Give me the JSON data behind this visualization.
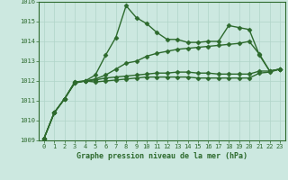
{
  "background_color": "#cce8e0",
  "grid_color": "#b0d4c8",
  "line_color": "#2d6a2d",
  "marker_color": "#2d6a2d",
  "xlabel": "Graphe pression niveau de la mer (hPa)",
  "xlim": [
    -0.5,
    23.5
  ],
  "ylim": [
    1009,
    1016
  ],
  "yticks": [
    1009,
    1010,
    1011,
    1012,
    1013,
    1014,
    1015,
    1016
  ],
  "xticks": [
    0,
    1,
    2,
    3,
    4,
    5,
    6,
    7,
    8,
    9,
    10,
    11,
    12,
    13,
    14,
    15,
    16,
    17,
    18,
    19,
    20,
    21,
    22,
    23
  ],
  "series1": [
    1009.1,
    1010.4,
    1011.1,
    1011.9,
    1012.0,
    1012.3,
    1013.3,
    1014.2,
    1015.8,
    1015.2,
    1014.9,
    1014.45,
    1014.1,
    1014.1,
    1013.95,
    1013.95,
    1014.0,
    1014.0,
    1014.8,
    1014.7,
    1014.6,
    1013.3,
    1012.5,
    1012.6
  ],
  "series2": [
    1009.1,
    1010.4,
    1011.1,
    1011.9,
    1012.0,
    1012.1,
    1012.3,
    1012.6,
    1012.9,
    1013.0,
    1013.25,
    1013.4,
    1013.5,
    1013.6,
    1013.65,
    1013.7,
    1013.75,
    1013.8,
    1013.85,
    1013.9,
    1014.0,
    1013.35,
    1012.5,
    1012.6
  ],
  "series3": [
    1009.1,
    1010.4,
    1011.1,
    1011.95,
    1012.0,
    1012.05,
    1012.15,
    1012.2,
    1012.25,
    1012.3,
    1012.35,
    1012.4,
    1012.4,
    1012.45,
    1012.45,
    1012.4,
    1012.4,
    1012.35,
    1012.35,
    1012.35,
    1012.35,
    1012.5,
    1012.5,
    1012.6
  ],
  "series4": [
    1009.1,
    1010.4,
    1011.1,
    1011.95,
    1012.0,
    1011.95,
    1012.0,
    1012.05,
    1012.1,
    1012.15,
    1012.2,
    1012.2,
    1012.2,
    1012.2,
    1012.2,
    1012.15,
    1012.15,
    1012.15,
    1012.15,
    1012.15,
    1012.15,
    1012.4,
    1012.45,
    1012.6
  ]
}
